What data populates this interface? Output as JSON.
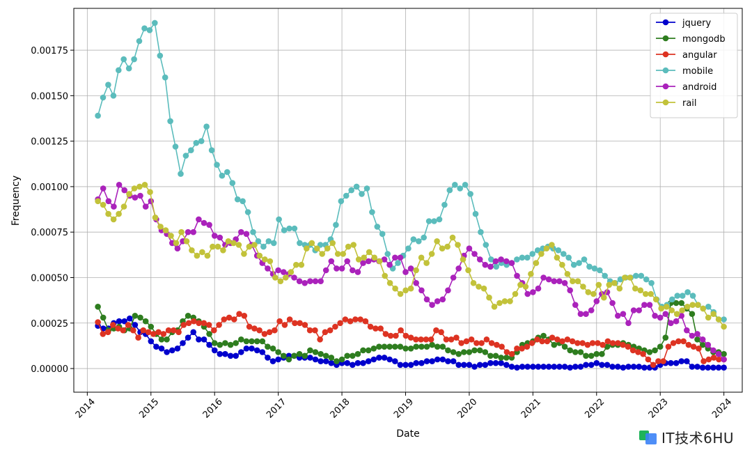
{
  "chart_data": {
    "type": "line",
    "xlabel": "Date",
    "ylabel": "Frequency",
    "xlim": [
      "2013-10-15",
      "2024-04-15"
    ],
    "ylim": [
      -0.00013,
      0.00198
    ],
    "x_ticks": [
      {
        "date": "2014-01-01",
        "label": "2014"
      },
      {
        "date": "2015-01-01",
        "label": "2015"
      },
      {
        "date": "2016-01-01",
        "label": "2016"
      },
      {
        "date": "2017-01-01",
        "label": "2017"
      },
      {
        "date": "2018-01-01",
        "label": "2018"
      },
      {
        "date": "2019-01-01",
        "label": "2019"
      },
      {
        "date": "2020-01-01",
        "label": "2020"
      },
      {
        "date": "2021-01-01",
        "label": "2021"
      },
      {
        "date": "2022-01-01",
        "label": "2022"
      },
      {
        "date": "2023-01-01",
        "label": "2023"
      },
      {
        "date": "2024-01-01",
        "label": "2024"
      }
    ],
    "y_ticks": [
      {
        "value": 0,
        "label": "0.00000"
      },
      {
        "value": 0.00025,
        "label": "0.00025"
      },
      {
        "value": 0.0005,
        "label": "0.00050"
      },
      {
        "value": 0.00075,
        "label": "0.00075"
      },
      {
        "value": 0.001,
        "label": "0.00100"
      },
      {
        "value": 0.00125,
        "label": "0.00125"
      },
      {
        "value": 0.0015,
        "label": "0.00150"
      },
      {
        "value": 0.00175,
        "label": "0.00175"
      }
    ],
    "grid": true,
    "legend_position": "top-right",
    "x_start": "2014-03",
    "x_end": "2024-01",
    "series": [
      {
        "name": "jquery",
        "color": "#0000cc",
        "values": [
          0.000235,
          0.00022,
          0.00022,
          0.00025,
          0.00026,
          0.00026,
          0.000275,
          0.00024,
          0.0002,
          0.00019,
          0.00015,
          0.00012,
          0.00011,
          9e-05,
          0.0001,
          0.00011,
          0.00014,
          0.00017,
          0.0002,
          0.00016,
          0.00016,
          0.00013,
          0.0001,
          8e-05,
          8e-05,
          7e-05,
          7e-05,
          9e-05,
          0.00011,
          0.00011,
          0.0001,
          9e-05,
          6e-05,
          4e-05,
          5e-05,
          6e-05,
          7e-05,
          7e-05,
          6e-05,
          6e-05,
          6e-05,
          5e-05,
          4e-05,
          4e-05,
          3e-05,
          2e-05,
          3e-05,
          3e-05,
          2e-05,
          3e-05,
          3e-05,
          4e-05,
          5e-05,
          6e-05,
          6e-05,
          5e-05,
          4e-05,
          2e-05,
          2e-05,
          2e-05,
          3e-05,
          3e-05,
          4e-05,
          4e-05,
          5e-05,
          5e-05,
          4e-05,
          4e-05,
          2e-05,
          2e-05,
          2e-05,
          1e-05,
          2e-05,
          2e-05,
          3e-05,
          3e-05,
          3e-05,
          2e-05,
          1e-05,
          5e-06,
          1e-05,
          1e-05,
          1e-05,
          1e-05,
          1e-05,
          1e-05,
          1e-05,
          1e-05,
          1e-05,
          5e-06,
          1e-05,
          1e-05,
          2e-05,
          2e-05,
          3e-05,
          2e-05,
          2e-05,
          1e-05,
          1e-05,
          5e-06,
          1e-05,
          1e-05,
          1e-05,
          5e-06,
          5e-06,
          5e-06,
          2e-05,
          3e-05,
          3e-05,
          3e-05,
          4e-05,
          4e-05,
          1e-05,
          1e-05,
          5e-06,
          5e-06,
          5e-06,
          5e-06,
          5e-06
        ]
      },
      {
        "name": "mongodb",
        "color": "#2e7d1f",
        "values": [
          0.00034,
          0.00028,
          0.00021,
          0.00022,
          0.00023,
          0.00021,
          0.00022,
          0.00029,
          0.00028,
          0.00026,
          0.00023,
          0.00019,
          0.00016,
          0.00016,
          0.0002,
          0.00021,
          0.00026,
          0.00029,
          0.00028,
          0.00026,
          0.00023,
          0.00019,
          0.00014,
          0.00013,
          0.00014,
          0.00013,
          0.00014,
          0.00016,
          0.00015,
          0.00015,
          0.00015,
          0.00015,
          0.00012,
          0.00011,
          9e-05,
          7e-05,
          5e-05,
          7e-05,
          8e-05,
          7e-05,
          0.0001,
          9e-05,
          8e-05,
          7e-05,
          6e-05,
          4e-05,
          5e-05,
          7e-05,
          7e-05,
          8e-05,
          0.0001,
          0.0001,
          0.00011,
          0.00012,
          0.00012,
          0.00012,
          0.00012,
          0.00012,
          0.00011,
          0.00011,
          0.00012,
          0.00012,
          0.00012,
          0.00013,
          0.00012,
          0.00012,
          0.0001,
          9e-05,
          8e-05,
          9e-05,
          9e-05,
          0.0001,
          0.0001,
          9e-05,
          7e-05,
          7e-05,
          6e-05,
          6e-05,
          6e-05,
          9e-05,
          0.00013,
          0.00014,
          0.00015,
          0.00017,
          0.00018,
          0.00016,
          0.00013,
          0.00014,
          0.00012,
          0.0001,
          9e-05,
          9e-05,
          7e-05,
          7e-05,
          8e-05,
          8e-05,
          0.00012,
          0.00013,
          0.00013,
          0.00014,
          0.00013,
          0.00012,
          0.00011,
          0.0001,
          9e-05,
          0.0001,
          0.00012,
          0.00017,
          0.00036,
          0.00036,
          0.00036,
          0.00033,
          0.0003,
          0.00016,
          0.00013,
          0.00011,
          9e-05,
          9e-05,
          8e-05
        ]
      },
      {
        "name": "angular",
        "color": "#dd3322",
        "values": [
          0.000255,
          0.00019,
          0.0002,
          0.00024,
          0.00022,
          0.00021,
          0.00024,
          0.00021,
          0.00017,
          0.00021,
          0.0002,
          0.00019,
          0.0002,
          0.00019,
          0.00021,
          0.00021,
          0.0002,
          0.00024,
          0.00025,
          0.00026,
          0.00025,
          0.00025,
          0.00024,
          0.00021,
          0.00024,
          0.00027,
          0.00028,
          0.00027,
          0.0003,
          0.00029,
          0.00023,
          0.00022,
          0.00021,
          0.00019,
          0.0002,
          0.00021,
          0.00026,
          0.00024,
          0.00027,
          0.00025,
          0.00025,
          0.00024,
          0.00021,
          0.00021,
          0.00016,
          0.0002,
          0.00021,
          0.00023,
          0.00025,
          0.00027,
          0.00026,
          0.00027,
          0.00027,
          0.00026,
          0.00023,
          0.00022,
          0.00022,
          0.00019,
          0.00018,
          0.00018,
          0.00021,
          0.00018,
          0.00017,
          0.00016,
          0.00016,
          0.00016,
          0.00016,
          0.00021,
          0.0002,
          0.00016,
          0.00016,
          0.00017,
          0.00014,
          0.00015,
          0.00016,
          0.00014,
          0.00014,
          0.00016,
          0.00014,
          0.00013,
          0.00012,
          9e-05,
          8e-05,
          0.00011,
          0.00011,
          0.00012,
          0.00014,
          0.00016,
          0.00015,
          0.00015,
          0.00017,
          0.00016,
          0.00015,
          0.00016,
          0.00015,
          0.00014,
          0.00014,
          0.00013,
          0.00014,
          0.00014,
          0.00013,
          0.00015,
          0.00014,
          0.00014,
          0.00013,
          0.00012,
          0.0001,
          9e-05,
          8e-05,
          5e-05,
          2e-05,
          4e-05,
          4e-05,
          0.00012,
          0.00014,
          0.00015,
          0.00015,
          0.00013,
          0.00012,
          0.00011,
          4e-05,
          5e-05,
          6e-05,
          5e-05,
          5e-05
        ]
      },
      {
        "name": "mobile",
        "color": "#5bbcbc",
        "values": [
          0.00139,
          0.00149,
          0.00156,
          0.0015,
          0.00164,
          0.0017,
          0.00165,
          0.0017,
          0.0018,
          0.00187,
          0.00186,
          0.0019,
          0.00172,
          0.0016,
          0.00136,
          0.00122,
          0.00107,
          0.00117,
          0.0012,
          0.00124,
          0.00125,
          0.00133,
          0.0012,
          0.00112,
          0.00106,
          0.00108,
          0.00102,
          0.00093,
          0.00092,
          0.00086,
          0.00075,
          0.0007,
          0.00067,
          0.0007,
          0.00069,
          0.00082,
          0.00076,
          0.00077,
          0.00077,
          0.00069,
          0.00068,
          0.00068,
          0.00065,
          0.00068,
          0.00068,
          0.00071,
          0.00079,
          0.00092,
          0.00095,
          0.00098,
          0.001,
          0.00096,
          0.00099,
          0.00086,
          0.00078,
          0.00074,
          0.00063,
          0.00055,
          0.00058,
          0.00062,
          0.00066,
          0.00071,
          0.0007,
          0.00072,
          0.00081,
          0.00081,
          0.00082,
          0.0009,
          0.00098,
          0.00101,
          0.00099,
          0.00101,
          0.00096,
          0.00085,
          0.00075,
          0.00068,
          0.0006,
          0.00056,
          0.00058,
          0.00057,
          0.00058,
          0.0006,
          0.00061,
          0.00061,
          0.00063,
          0.00065,
          0.00066,
          0.00067,
          0.00066,
          0.00065,
          0.00063,
          0.00061,
          0.00057,
          0.00058,
          0.0006,
          0.00056,
          0.00055,
          0.00054,
          0.00051,
          0.00048,
          0.00047,
          0.00049,
          0.0005,
          0.0005,
          0.00051,
          0.00051,
          0.00049,
          0.00047,
          0.00038,
          0.00034,
          0.00035,
          0.00038,
          0.0004,
          0.0004,
          0.00042,
          0.0004,
          0.00035,
          0.00033,
          0.00034,
          0.00031,
          0.00027,
          0.00027
        ]
      },
      {
        "name": "android",
        "color": "#aa22bb",
        "values": [
          0.00093,
          0.00099,
          0.00092,
          0.00089,
          0.00101,
          0.00098,
          0.00095,
          0.00094,
          0.00095,
          0.00089,
          0.00092,
          0.00082,
          0.00076,
          0.00074,
          0.00069,
          0.00066,
          0.0007,
          0.00075,
          0.00075,
          0.00082,
          0.0008,
          0.00079,
          0.00073,
          0.00072,
          0.00068,
          0.00069,
          0.00071,
          0.00075,
          0.00074,
          0.00068,
          0.00062,
          0.00058,
          0.00055,
          0.00052,
          0.00054,
          0.00053,
          0.00052,
          0.0005,
          0.00048,
          0.00047,
          0.00048,
          0.00048,
          0.00048,
          0.00054,
          0.00059,
          0.00055,
          0.00055,
          0.00059,
          0.00054,
          0.00053,
          0.00058,
          0.00059,
          0.0006,
          0.00059,
          0.0006,
          0.00057,
          0.00061,
          0.00061,
          0.00053,
          0.00055,
          0.00047,
          0.00043,
          0.00038,
          0.00035,
          0.00037,
          0.00038,
          0.00043,
          0.0005,
          0.00055,
          0.00062,
          0.00066,
          0.00063,
          0.0006,
          0.00057,
          0.00056,
          0.00059,
          0.0006,
          0.00059,
          0.00058,
          0.00051,
          0.00047,
          0.00041,
          0.00042,
          0.00044,
          0.0005,
          0.00049,
          0.00048,
          0.00048,
          0.00047,
          0.00043,
          0.00035,
          0.0003,
          0.0003,
          0.00032,
          0.00037,
          0.00041,
          0.00042,
          0.00036,
          0.00029,
          0.0003,
          0.00025,
          0.00032,
          0.00032,
          0.00035,
          0.00035,
          0.00029,
          0.00028,
          0.0003,
          0.00025,
          0.00026,
          0.00029,
          0.00021,
          0.00018,
          0.00019,
          0.00016,
          0.00013,
          0.0001,
          8e-05,
          5e-05
        ]
      },
      {
        "name": "rail",
        "color": "#c2c23a",
        "values": [
          0.00092,
          0.0009,
          0.00085,
          0.00082,
          0.00085,
          0.00089,
          0.00096,
          0.00099,
          0.001,
          0.00101,
          0.00097,
          0.00083,
          0.00078,
          0.00076,
          0.00073,
          0.00069,
          0.00075,
          0.0007,
          0.00065,
          0.00062,
          0.00064,
          0.00062,
          0.00067,
          0.00067,
          0.00065,
          0.0007,
          0.00069,
          0.00068,
          0.00063,
          0.00067,
          0.00068,
          0.00062,
          0.0006,
          0.00059,
          0.0005,
          0.00048,
          0.0005,
          0.00053,
          0.00057,
          0.00057,
          0.00066,
          0.00069,
          0.00066,
          0.00063,
          0.00066,
          0.00069,
          0.00063,
          0.00063,
          0.00067,
          0.00068,
          0.0006,
          0.00061,
          0.00064,
          0.00061,
          0.00059,
          0.00051,
          0.00047,
          0.00044,
          0.00041,
          0.00043,
          0.00044,
          0.00054,
          0.00061,
          0.00058,
          0.00063,
          0.0007,
          0.00066,
          0.00067,
          0.00072,
          0.00068,
          0.0006,
          0.00054,
          0.00047,
          0.00045,
          0.00044,
          0.00039,
          0.00034,
          0.00036,
          0.00037,
          0.00037,
          0.00041,
          0.00046,
          0.00045,
          0.00052,
          0.00058,
          0.00063,
          0.00066,
          0.00068,
          0.00061,
          0.00057,
          0.00052,
          0.00048,
          0.00048,
          0.00045,
          0.00042,
          0.00041,
          0.00046,
          0.00039,
          0.00046,
          0.00047,
          0.00044,
          0.0005,
          0.0005,
          0.00044,
          0.00043,
          0.00041,
          0.00041,
          0.00038,
          0.00033,
          0.00034,
          0.00032,
          0.0003,
          0.00032,
          0.00034,
          0.00035,
          0.00035,
          0.00033,
          0.00028,
          0.0003,
          0.00027,
          0.00023
        ]
      }
    ]
  },
  "watermark": {
    "text": "IT技术6HU"
  }
}
